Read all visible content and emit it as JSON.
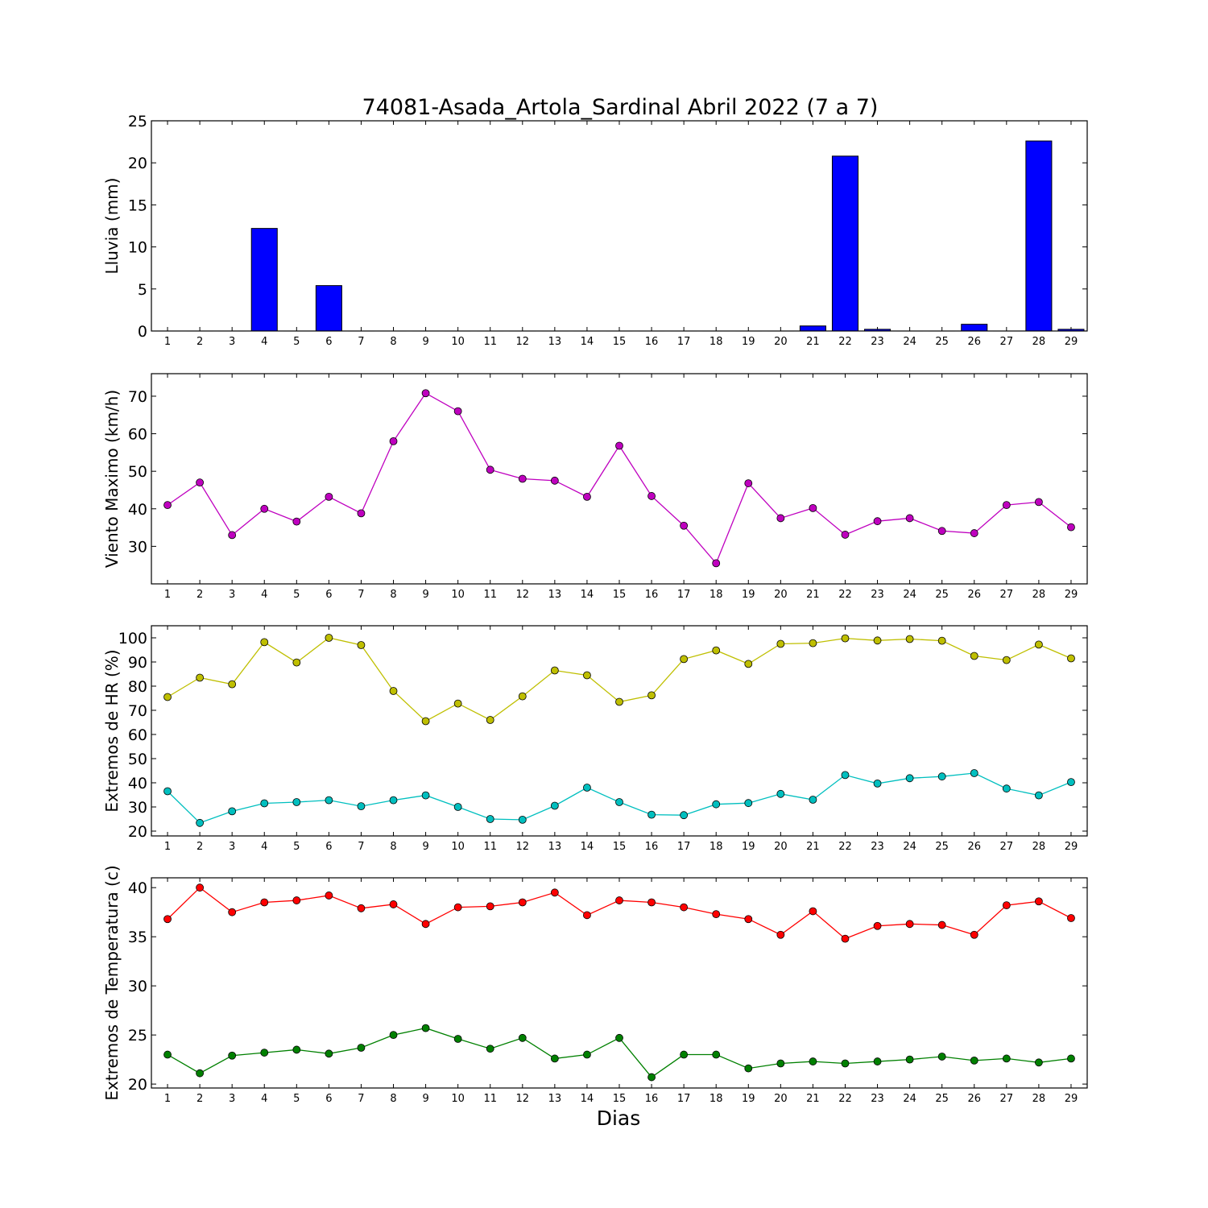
{
  "title": "74081-Asada_Artola_Sardinal Abril 2022  (7 a 7)",
  "xlabel": "Dias",
  "chart_data": [
    {
      "type": "bar",
      "ylabel": "Lluvia (mm)",
      "ylim": [
        0,
        25
      ],
      "yticks": [
        0,
        5,
        10,
        15,
        20,
        25
      ],
      "categories": [
        1,
        2,
        3,
        4,
        5,
        6,
        7,
        8,
        9,
        10,
        11,
        12,
        13,
        14,
        15,
        16,
        17,
        18,
        19,
        20,
        21,
        22,
        23,
        24,
        25,
        26,
        27,
        28,
        29
      ],
      "values": [
        0,
        0,
        0,
        12.2,
        0,
        5.4,
        0,
        0,
        0,
        0,
        0,
        0,
        0,
        0,
        0,
        0,
        0,
        0,
        0,
        0,
        0.6,
        20.8,
        0.2,
        0,
        0,
        0.8,
        0,
        22.6,
        0.2
      ],
      "color": "#0000ff"
    },
    {
      "type": "line",
      "ylabel": "Viento Maximo (km/h)",
      "ylim": [
        20,
        76
      ],
      "yticks": [
        30,
        40,
        50,
        60,
        70
      ],
      "x": [
        1,
        2,
        3,
        4,
        5,
        6,
        7,
        8,
        9,
        10,
        11,
        12,
        13,
        14,
        15,
        16,
        17,
        18,
        19,
        20,
        21,
        22,
        23,
        24,
        25,
        26,
        27,
        28,
        29
      ],
      "series": [
        {
          "values": [
            41.0,
            47.0,
            33.0,
            40.0,
            36.6,
            43.2,
            38.8,
            58.0,
            70.8,
            66.0,
            50.4,
            48.0,
            47.5,
            43.2,
            56.8,
            43.4,
            35.5,
            25.5,
            46.8,
            37.5,
            40.2,
            33.1,
            36.7,
            37.5,
            34.1,
            33.5,
            41.0,
            41.8,
            35.1
          ],
          "color": "#bf00bf"
        }
      ]
    },
    {
      "type": "line",
      "ylabel": "Extremos de HR (%)",
      "ylim": [
        18,
        105
      ],
      "yticks": [
        20,
        30,
        40,
        50,
        60,
        70,
        80,
        90,
        100
      ],
      "x": [
        1,
        2,
        3,
        4,
        5,
        6,
        7,
        8,
        9,
        10,
        11,
        12,
        13,
        14,
        15,
        16,
        17,
        18,
        19,
        20,
        21,
        22,
        23,
        24,
        25,
        26,
        27,
        28,
        29
      ],
      "series": [
        {
          "values": [
            75.5,
            83.5,
            80.8,
            98.2,
            89.8,
            100.0,
            97.0,
            78.0,
            65.5,
            72.8,
            66.0,
            75.8,
            86.5,
            84.5,
            73.5,
            76.2,
            91.2,
            94.8,
            89.2,
            97.5,
            97.8,
            99.8,
            98.9,
            99.5,
            98.8,
            92.5,
            90.8,
            97.2,
            91.5
          ],
          "color": "#bfbf00"
        },
        {
          "values": [
            36.5,
            23.4,
            28.2,
            31.5,
            32.0,
            32.8,
            30.3,
            32.8,
            34.8,
            30.0,
            25.0,
            24.7,
            30.5,
            38.0,
            32.0,
            26.8,
            26.6,
            31.1,
            31.6,
            35.4,
            33.0,
            43.2,
            39.7,
            41.9,
            42.6,
            44.0,
            37.6,
            34.8,
            40.3
          ],
          "color": "#00bfbf"
        }
      ]
    },
    {
      "type": "line",
      "ylabel": "Extremos de Temperatura (c)",
      "ylim": [
        19.6,
        41.0
      ],
      "yticks": [
        20,
        25,
        30,
        35,
        40
      ],
      "x": [
        1,
        2,
        3,
        4,
        5,
        6,
        7,
        8,
        9,
        10,
        11,
        12,
        13,
        14,
        15,
        16,
        17,
        18,
        19,
        20,
        21,
        22,
        23,
        24,
        25,
        26,
        27,
        28,
        29
      ],
      "series": [
        {
          "values": [
            36.8,
            40.0,
            37.5,
            38.5,
            38.7,
            39.2,
            37.9,
            38.3,
            36.3,
            38.0,
            38.1,
            38.5,
            39.5,
            37.2,
            38.7,
            38.5,
            38.0,
            37.3,
            36.8,
            35.2,
            37.6,
            34.8,
            36.1,
            36.3,
            36.2,
            35.2,
            38.2,
            38.6,
            36.9
          ],
          "color": "#ff0000"
        },
        {
          "values": [
            23.0,
            21.1,
            22.9,
            23.2,
            23.5,
            23.1,
            23.7,
            25.0,
            25.7,
            24.6,
            23.6,
            24.7,
            22.6,
            23.0,
            24.7,
            20.7,
            23.0,
            23.0,
            21.6,
            22.1,
            22.3,
            22.1,
            22.3,
            22.5,
            22.8,
            22.4,
            22.6,
            22.2,
            22.6
          ],
          "color": "#008000"
        }
      ]
    }
  ]
}
